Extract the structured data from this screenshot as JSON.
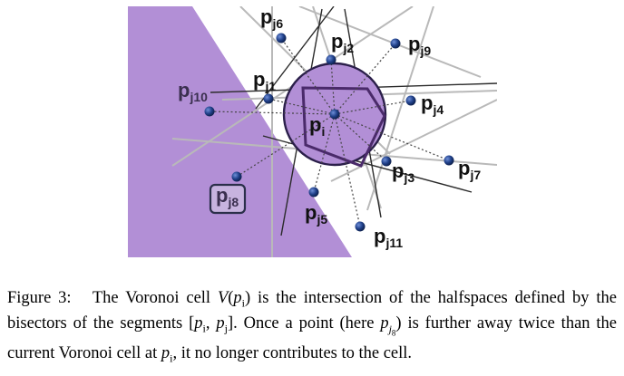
{
  "figure": {
    "center_label": "p",
    "center_sub": "i",
    "highlighted_point": "j8",
    "points": [
      {
        "id": "j1",
        "base": "p",
        "sub": "j1"
      },
      {
        "id": "j2",
        "base": "p",
        "sub": "j2"
      },
      {
        "id": "j3",
        "base": "p",
        "sub": "j3"
      },
      {
        "id": "j4",
        "base": "p",
        "sub": "j4"
      },
      {
        "id": "j5",
        "base": "p",
        "sub": "j5"
      },
      {
        "id": "j6",
        "base": "p",
        "sub": "j6"
      },
      {
        "id": "j7",
        "base": "p",
        "sub": "j7"
      },
      {
        "id": "j8",
        "base": "p",
        "sub": "j8"
      },
      {
        "id": "j9",
        "base": "p",
        "sub": "j9"
      },
      {
        "id": "j10",
        "base": "p",
        "sub": "j10"
      },
      {
        "id": "j11",
        "base": "p",
        "sub": "j11"
      }
    ],
    "colors": {
      "halfspace_fill": "#b28fd6",
      "circle_fill": "#b28fd6",
      "circle_stroke": "#2b1f4a",
      "cell_stroke": "#4a2a6a",
      "point_fill": "#1f3f88",
      "bisector": "#b9b9b9",
      "segment": "#444444"
    }
  },
  "caption": {
    "label": "Figure 3:",
    "text": "The Voronoi cell V(p_i) is the intersection of the halfspaces defined by the bisectors of the segments [p_i, p_j]. Once a point (here p_{j_8}) is further away twice than the current Voronoi cell at p_i, it no longer contributes to the cell."
  }
}
